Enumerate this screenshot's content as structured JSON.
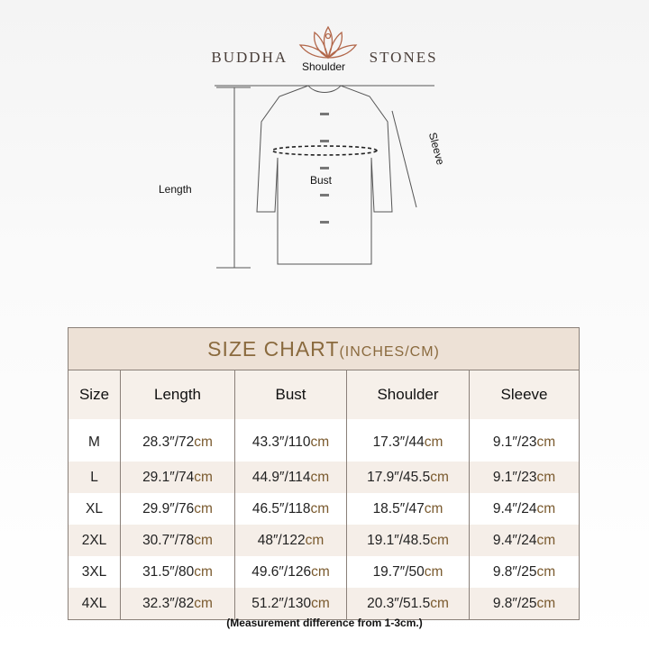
{
  "brand": {
    "left": "BUDDHA",
    "right": "STONES"
  },
  "diagram": {
    "shoulder": "Shoulder",
    "sleeve": "Sleeve",
    "length": "Length",
    "bust": "Bust"
  },
  "chart": {
    "title": "SIZE CHART",
    "title_unit": "(INCHES/CM)",
    "headers": [
      "Size",
      "Length",
      "Bust",
      "Shoulder",
      "Sleeve"
    ],
    "rows": [
      {
        "size": "M",
        "length": "28.3″/72",
        "bust": "43.3″/110",
        "shoulder": "17.3″/44",
        "sleeve": "9.1″/23"
      },
      {
        "size": "L",
        "length": "29.1″/74",
        "bust": "44.9″/114",
        "shoulder": "17.9″/45.5",
        "sleeve": "9.1″/23"
      },
      {
        "size": "XL",
        "length": "29.9″/76",
        "bust": "46.5″/118",
        "shoulder": "18.5″/47",
        "sleeve": "9.4″/24"
      },
      {
        "size": "2XL",
        "length": "30.7″/78",
        "bust": "48″/122",
        "shoulder": "19.1″/48.5",
        "sleeve": "9.4″/24"
      },
      {
        "size": "3XL",
        "length": "31.5″/80",
        "bust": "49.6″/126",
        "shoulder": "19.7″/50",
        "sleeve": "9.8″/25"
      },
      {
        "size": "4XL",
        "length": "32.3″/82",
        "bust": "51.2″/130",
        "shoulder": "20.3″/51.5",
        "sleeve": "9.8″/25"
      }
    ],
    "unit": "cm"
  },
  "note": "(Measurement difference from 1-3cm.)"
}
